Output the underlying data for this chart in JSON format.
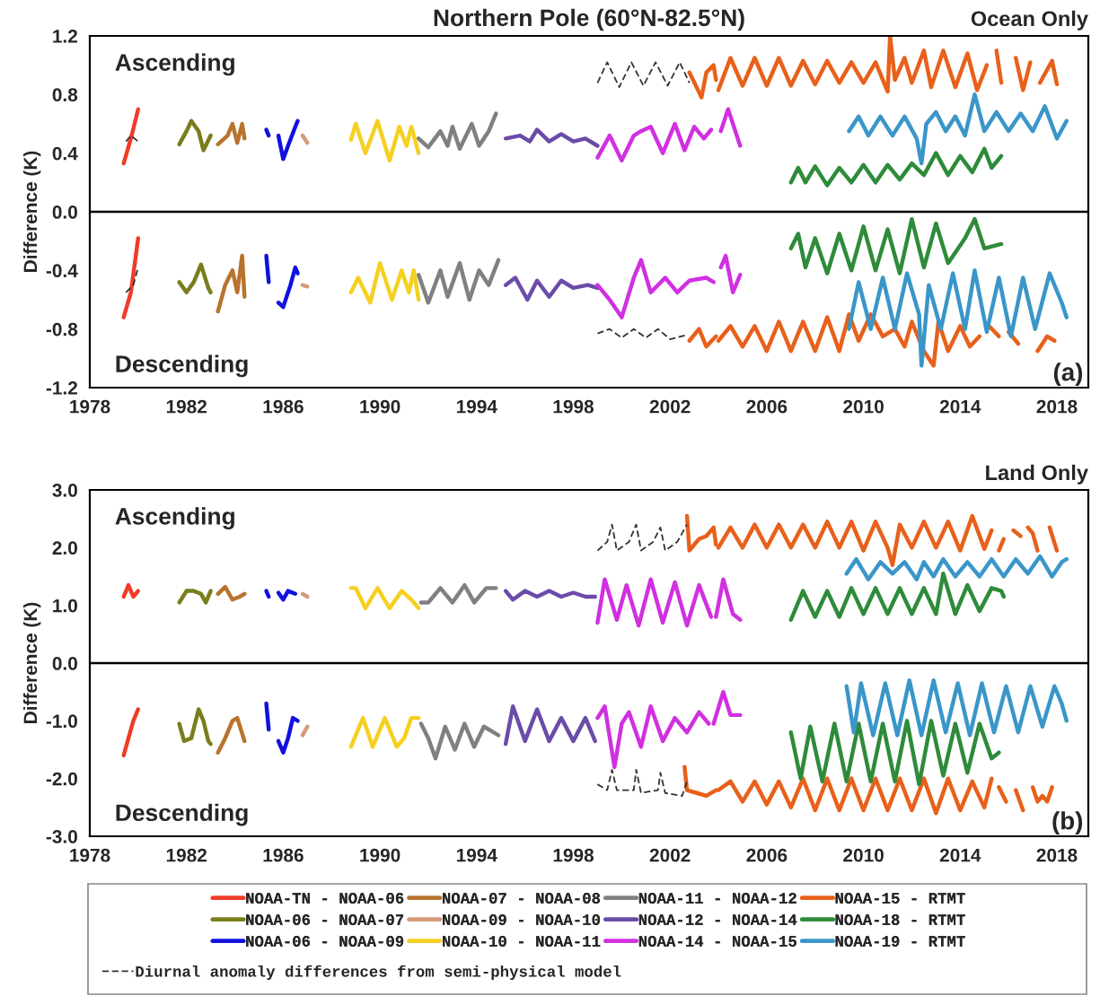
{
  "chart_data": [
    {
      "type": "line",
      "title": "Northern Pole (60°N-82.5°N)",
      "subtitle": "Ocean Only",
      "ylabel": "Difference (K)",
      "annotations": [
        "Ascending",
        "Descending",
        "(a)"
      ],
      "xlim": [
        1978,
        2019.3
      ],
      "xticks": [
        1978,
        1982,
        1986,
        1990,
        1994,
        1998,
        2002,
        2006,
        2010,
        2014,
        2018
      ],
      "ylim": [
        -1.2,
        1.2
      ],
      "yticks": [
        {
          "value": -1.2,
          "label": "-1.2"
        },
        {
          "value": -0.8,
          "label": "-0.8"
        },
        {
          "value": -0.4,
          "label": "-0.4"
        },
        {
          "value": 0,
          "label": "0.0"
        },
        {
          "value": 0.4,
          "label": "0.4"
        },
        {
          "value": 0.8,
          "label": "0.8"
        },
        {
          "value": 1.2,
          "label": "1.2"
        }
      ],
      "ref_lines": [
        {
          "axis": "y",
          "value": 0,
          "color": "#000000"
        }
      ],
      "series": [
        {
          "color": "#f03c28",
          "x": [
            1979.4,
            1979.7,
            1980.0
          ],
          "values": [
            0.33,
            0.5,
            0.7
          ]
        },
        {
          "color": "#f03c28",
          "x": [
            1979.4,
            1979.7,
            1980.0
          ],
          "values": [
            -0.72,
            -0.55,
            -0.18
          ]
        },
        {
          "color": "#7a7d1c",
          "x": [
            1981.7,
            1982.0,
            1982.2,
            1982.5,
            1982.7,
            1983.0
          ],
          "values": [
            0.46,
            0.55,
            0.62,
            0.55,
            0.42,
            0.52
          ]
        },
        {
          "color": "#7a7d1c",
          "x": [
            1981.7,
            1982.0,
            1982.3,
            1982.6,
            1982.9,
            1983.0
          ],
          "values": [
            -0.48,
            -0.55,
            -0.48,
            -0.36,
            -0.52,
            -0.55
          ]
        },
        {
          "color": "#1010e0",
          "x": [
            1985.3,
            1985.4,
            null,
            1985.8,
            1986.0,
            1986.2,
            1986.5,
            1986.6
          ],
          "values": [
            0.56,
            0.52,
            null,
            0.52,
            0.36,
            0.45,
            0.58,
            0.62
          ]
        },
        {
          "color": "#1010e0",
          "x": [
            1985.3,
            1985.4,
            null,
            1985.8,
            1986.0,
            1986.3,
            1986.5,
            1986.6
          ],
          "values": [
            -0.3,
            -0.48,
            null,
            -0.62,
            -0.65,
            -0.5,
            -0.38,
            -0.42
          ]
        },
        {
          "color": "#b8732e",
          "x": [
            1983.3,
            1983.7,
            1983.9,
            1984.1,
            1984.3,
            1984.4
          ],
          "values": [
            0.46,
            0.52,
            0.6,
            0.47,
            0.6,
            0.5
          ]
        },
        {
          "color": "#b8732e",
          "x": [
            1983.3,
            1983.6,
            1983.9,
            1984.1,
            1984.3,
            1984.4
          ],
          "values": [
            -0.68,
            -0.5,
            -0.4,
            -0.55,
            -0.3,
            -0.58
          ]
        },
        {
          "color": "#d49a7a",
          "x": [
            1986.8,
            1987.0
          ],
          "values": [
            0.52,
            0.47
          ]
        },
        {
          "color": "#d49a7a",
          "x": [
            1986.8,
            1987.0
          ],
          "values": [
            -0.5,
            -0.51
          ]
        },
        {
          "color": "#f5d020",
          "x": [
            1988.8,
            1989.0,
            1989.4,
            1989.9,
            1990.4,
            1990.8,
            1991.1,
            1991.3,
            1991.6
          ],
          "values": [
            0.49,
            0.6,
            0.4,
            0.62,
            0.35,
            0.58,
            0.45,
            0.58,
            0.4
          ]
        },
        {
          "color": "#f5d020",
          "x": [
            1988.8,
            1989.1,
            1989.6,
            1990.0,
            1990.5,
            1990.9,
            1991.2,
            1991.4,
            1991.6
          ],
          "values": [
            -0.55,
            -0.45,
            -0.62,
            -0.35,
            -0.6,
            -0.4,
            -0.55,
            -0.4,
            -0.6
          ]
        },
        {
          "color": "#808080",
          "x": [
            1991.6,
            1992.0,
            1992.5,
            1992.8,
            1993.0,
            1993.3,
            1993.8,
            1994.1,
            1994.5,
            1994.8
          ],
          "values": [
            0.5,
            0.44,
            0.55,
            0.45,
            0.58,
            0.43,
            0.6,
            0.45,
            0.55,
            0.67
          ]
        },
        {
          "color": "#808080",
          "x": [
            1991.6,
            1992.0,
            1992.5,
            1992.8,
            1993.3,
            1993.7,
            1994.1,
            1994.5,
            1994.9
          ],
          "values": [
            -0.43,
            -0.62,
            -0.4,
            -0.58,
            -0.35,
            -0.6,
            -0.4,
            -0.5,
            -0.33
          ]
        },
        {
          "color": "#6a4ca8",
          "x": [
            1995.2,
            1995.8,
            1996.2,
            1996.5,
            1997.0,
            1997.5,
            1998.0,
            1998.5,
            1999.0
          ],
          "values": [
            0.5,
            0.52,
            0.48,
            0.56,
            0.48,
            0.53,
            0.48,
            0.5,
            0.45
          ]
        },
        {
          "color": "#6a4ca8",
          "x": [
            1995.2,
            1995.6,
            1996.1,
            1996.5,
            1997.0,
            1997.5,
            1998.0,
            1998.6,
            1999.0
          ],
          "values": [
            -0.5,
            -0.45,
            -0.6,
            -0.47,
            -0.58,
            -0.47,
            -0.52,
            -0.5,
            -0.52
          ]
        },
        {
          "color": "#d030e0",
          "x": [
            1999.0,
            1999.5,
            2000.0,
            2000.5,
            2000.8,
            2001.2,
            2001.7,
            2002.2,
            2002.6,
            2003.0,
            2003.4,
            2003.7,
            null,
            2004.1,
            2004.4,
            2004.7,
            2004.9
          ],
          "values": [
            0.37,
            0.52,
            0.35,
            0.52,
            0.55,
            0.58,
            0.4,
            0.6,
            0.42,
            0.58,
            0.5,
            0.56,
            null,
            0.55,
            0.7,
            0.55,
            0.45
          ]
        },
        {
          "color": "#d030e0",
          "x": [
            1999.0,
            1999.5,
            2000.0,
            2000.5,
            2000.8,
            2001.2,
            2001.8,
            2002.3,
            2002.8,
            2003.5,
            2003.8,
            null,
            2004.1,
            2004.3,
            2004.6,
            2004.9
          ],
          "values": [
            -0.5,
            -0.6,
            -0.72,
            -0.45,
            -0.33,
            -0.55,
            -0.45,
            -0.55,
            -0.47,
            -0.45,
            -0.48,
            null,
            -0.38,
            -0.3,
            -0.55,
            -0.43
          ]
        },
        {
          "color": "#e8601a",
          "x": [
            2002.8,
            2003.1,
            2003.3,
            2003.5,
            2003.8,
            2003.9,
            null,
            2004.0,
            2004.5,
            2005.0,
            2005.5,
            2006.0,
            2006.5,
            2007.0,
            2007.5,
            2008.0,
            2008.5,
            2009.0,
            2009.5,
            2010.0,
            2010.5,
            2011.0,
            2011.1,
            2011.3,
            2011.7,
            2012.0,
            2012.5,
            2012.8,
            2013.3,
            2013.8,
            2014.3,
            2014.7,
            2015.1,
            null,
            2015.5,
            2015.7,
            null,
            2016.3,
            2016.6,
            2016.9,
            null,
            2017.3,
            2017.8,
            2018.0
          ],
          "values": [
            0.95,
            0.85,
            0.78,
            0.95,
            1.0,
            0.9,
            null,
            0.83,
            1.05,
            0.86,
            1.05,
            0.86,
            1.05,
            0.86,
            1.03,
            0.87,
            1.03,
            0.88,
            1.02,
            0.88,
            1.02,
            0.82,
            1.2,
            0.9,
            1.05,
            0.88,
            1.1,
            0.85,
            1.1,
            0.85,
            1.08,
            0.83,
            1.0,
            null,
            1.1,
            0.88,
            null,
            1.05,
            0.83,
            1.02,
            null,
            0.88,
            1.03,
            0.87
          ]
        },
        {
          "color": "#e8601a",
          "x": [
            2002.8,
            2003.2,
            2003.5,
            2003.9,
            null,
            2004.0,
            2004.5,
            2005.0,
            2005.5,
            2006.0,
            2006.5,
            2007.0,
            2007.5,
            2008.0,
            2008.5,
            2009.0,
            2009.4,
            2009.8,
            2010.3,
            2010.8,
            2011.3,
            2011.7,
            2012.0,
            2012.5,
            2012.9,
            2013.1,
            2013.5,
            2014.0,
            2014.4,
            2014.8,
            null,
            2015.2,
            2015.6,
            null,
            2016.0,
            2016.4,
            null,
            2017.2,
            2017.6,
            2017.9
          ],
          "values": [
            -0.88,
            -0.8,
            -0.92,
            -0.85,
            null,
            -0.88,
            -0.78,
            -0.92,
            -0.78,
            -0.95,
            -0.75,
            -0.95,
            -0.75,
            -0.95,
            -0.72,
            -0.95,
            -0.7,
            -0.88,
            -0.7,
            -0.85,
            -0.8,
            -0.92,
            -0.75,
            -0.95,
            -1.05,
            -0.75,
            -0.95,
            -0.78,
            -0.92,
            -0.85,
            null,
            -0.78,
            -0.85,
            null,
            -0.82,
            -0.9,
            null,
            -0.95,
            -0.85,
            -0.88
          ]
        },
        {
          "color": "#2e8b3a",
          "x": [
            2007.0,
            2007.3,
            2007.6,
            2008.0,
            2008.5,
            2009.0,
            2009.5,
            2010.0,
            2010.5,
            2011.0,
            2011.5,
            2012.0,
            2012.5,
            2013.0,
            2013.5,
            2014.0,
            2014.5,
            2015.0,
            2015.3,
            2015.7
          ],
          "values": [
            0.2,
            0.3,
            0.2,
            0.31,
            0.18,
            0.3,
            0.2,
            0.32,
            0.2,
            0.32,
            0.22,
            0.33,
            0.25,
            0.4,
            0.25,
            0.38,
            0.27,
            0.43,
            0.3,
            0.38
          ]
        },
        {
          "color": "#2e8b3a",
          "x": [
            2007.0,
            2007.3,
            2007.6,
            2008.0,
            2008.5,
            2009.0,
            2009.5,
            2010.0,
            2010.5,
            2011.0,
            2011.5,
            2012.0,
            2012.5,
            2013.0,
            2013.5,
            2014.2,
            2014.6,
            2015.0,
            2015.7
          ],
          "values": [
            -0.25,
            -0.15,
            -0.38,
            -0.18,
            -0.42,
            -0.15,
            -0.4,
            -0.1,
            -0.4,
            -0.12,
            -0.42,
            -0.05,
            -0.38,
            -0.08,
            -0.35,
            -0.18,
            -0.05,
            -0.25,
            -0.22
          ]
        },
        {
          "color": "#3a96c8",
          "x": [
            2009.4,
            2009.8,
            2010.2,
            2010.7,
            2011.2,
            2011.7,
            2012.2,
            2012.4,
            2012.6,
            2013.0,
            2013.4,
            2013.8,
            2014.2,
            2014.6,
            2015.0,
            2015.5,
            2016.0,
            2016.5,
            2017.0,
            2017.5,
            2018.0,
            2018.4
          ],
          "values": [
            0.55,
            0.65,
            0.52,
            0.65,
            0.52,
            0.65,
            0.5,
            0.33,
            0.6,
            0.68,
            0.55,
            0.65,
            0.52,
            0.8,
            0.55,
            0.68,
            0.55,
            0.67,
            0.55,
            0.72,
            0.5,
            0.62
          ]
        },
        {
          "color": "#3a96c8",
          "x": [
            2009.4,
            2009.8,
            2010.3,
            2010.8,
            2011.3,
            2011.8,
            2012.3,
            2012.4,
            2012.7,
            2013.2,
            2013.7,
            2014.2,
            2014.6,
            2015.1,
            2015.6,
            2016.1,
            2016.6,
            2017.1,
            2017.7,
            2018.2,
            2018.4
          ],
          "values": [
            -0.8,
            -0.48,
            -0.8,
            -0.45,
            -0.8,
            -0.42,
            -0.7,
            -1.05,
            -0.5,
            -0.8,
            -0.42,
            -0.8,
            -0.4,
            -0.82,
            -0.45,
            -0.85,
            -0.45,
            -0.8,
            -0.42,
            -0.62,
            -0.72
          ]
        },
        {
          "color": "#333333",
          "line_style": "dashed",
          "x": [
            1979.5,
            1979.7,
            1980.0,
            null,
            1999.0,
            1999.4,
            1999.9,
            2000.4,
            2000.9,
            2001.4,
            2001.9,
            2002.4,
            2002.8
          ],
          "values": [
            0.48,
            0.52,
            0.48,
            null,
            0.88,
            1.02,
            0.85,
            1.02,
            0.86,
            1.02,
            0.86,
            1.02,
            0.88
          ]
        },
        {
          "color": "#333333",
          "line_style": "dashed",
          "x": [
            1979.5,
            1979.8,
            1980.0,
            null,
            1999.0,
            1999.5,
            2000.0,
            2000.5,
            2001.0,
            2001.5,
            2002.0,
            2002.7
          ],
          "values": [
            -0.55,
            -0.5,
            -0.38,
            null,
            -0.83,
            -0.8,
            -0.86,
            -0.8,
            -0.86,
            -0.8,
            -0.87,
            -0.84
          ]
        }
      ]
    },
    {
      "type": "line",
      "subtitle": "Land Only",
      "ylabel": "Difference (K)",
      "legend": "bottom",
      "annotations": [
        "Ascending",
        "Descending",
        "(b)"
      ],
      "xlim": [
        1978,
        2019.3
      ],
      "xticks": [
        1978,
        1982,
        1986,
        1990,
        1994,
        1998,
        2002,
        2006,
        2010,
        2014,
        2018
      ],
      "ylim": [
        -3.0,
        3.0
      ],
      "yticks": [
        {
          "value": -3,
          "label": "-3.0"
        },
        {
          "value": -2,
          "label": "-2.0"
        },
        {
          "value": -1,
          "label": "-1.0"
        },
        {
          "value": 0,
          "label": "0.0"
        },
        {
          "value": 1,
          "label": "1.0"
        },
        {
          "value": 2,
          "label": "2.0"
        },
        {
          "value": 3,
          "label": "3.0"
        }
      ],
      "ref_lines": [
        {
          "axis": "y",
          "value": 0,
          "color": "#000000"
        }
      ],
      "series": [
        {
          "name": "NOAA-TN - NOAA-06",
          "color": "#f03c28",
          "x": [
            1979.4,
            1979.6,
            1979.8,
            1980.0
          ],
          "values": [
            1.15,
            1.35,
            1.15,
            1.25
          ]
        },
        {
          "color": "#f03c28",
          "x": [
            1979.4,
            1979.6,
            1979.8,
            1980.0
          ],
          "values": [
            -1.6,
            -1.3,
            -1.0,
            -0.8
          ]
        },
        {
          "name": "NOAA-06 - NOAA-07",
          "color": "#7a7d1c",
          "x": [
            1981.7,
            1982.0,
            1982.3,
            1982.6,
            1982.8,
            1983.0
          ],
          "values": [
            1.05,
            1.25,
            1.25,
            1.2,
            1.05,
            1.25
          ]
        },
        {
          "color": "#7a7d1c",
          "x": [
            1981.7,
            1981.9,
            1982.2,
            1982.5,
            1982.7,
            1982.9,
            1983.0
          ],
          "values": [
            -1.05,
            -1.35,
            -1.3,
            -0.8,
            -1.0,
            -1.35,
            -1.4
          ]
        },
        {
          "name": "NOAA-06 - NOAA-09",
          "color": "#1010e0",
          "x": [
            1985.3,
            1985.4,
            null,
            1985.8,
            1986.0,
            1986.2,
            1986.5
          ],
          "values": [
            1.25,
            1.15,
            null,
            1.22,
            1.1,
            1.25,
            1.2
          ]
        },
        {
          "color": "#1010e0",
          "x": [
            1985.3,
            1985.4,
            null,
            1985.8,
            1986.0,
            1986.2,
            1986.4,
            1986.6
          ],
          "values": [
            -0.7,
            -1.15,
            null,
            -1.35,
            -1.55,
            -1.3,
            -0.95,
            -1.0
          ]
        },
        {
          "name": "NOAA-07 - NOAA-08",
          "color": "#b8732e",
          "x": [
            1983.3,
            1983.6,
            1983.9,
            1984.2,
            1984.4
          ],
          "values": [
            1.2,
            1.32,
            1.1,
            1.15,
            1.2
          ]
        },
        {
          "color": "#b8732e",
          "x": [
            1983.3,
            1983.6,
            1983.9,
            1984.1,
            1984.4
          ],
          "values": [
            -1.55,
            -1.3,
            -1.0,
            -0.95,
            -1.35
          ]
        },
        {
          "name": "NOAA-09 - NOAA-10",
          "color": "#d49a7a",
          "x": [
            1986.8,
            1987.0
          ],
          "values": [
            1.2,
            1.15
          ]
        },
        {
          "color": "#d49a7a",
          "x": [
            1986.8,
            1987.0
          ],
          "values": [
            -1.25,
            -1.1
          ]
        },
        {
          "name": "NOAA-10 - NOAA-11",
          "color": "#f5d020",
          "x": [
            1988.8,
            1989.0,
            1989.4,
            1989.9,
            1990.4,
            1990.9,
            1991.3,
            1991.6
          ],
          "values": [
            1.3,
            1.3,
            0.95,
            1.3,
            0.95,
            1.25,
            1.1,
            0.95
          ]
        },
        {
          "color": "#f5d020",
          "x": [
            1988.8,
            1989.3,
            1989.7,
            1990.2,
            1990.7,
            1991.0,
            1991.3,
            1991.6
          ],
          "values": [
            -1.45,
            -0.95,
            -1.45,
            -0.95,
            -1.45,
            -1.3,
            -0.95,
            -0.95
          ]
        },
        {
          "name": "NOAA-11 - NOAA-12",
          "color": "#808080",
          "x": [
            1991.7,
            1992.0,
            1992.5,
            1993.0,
            1993.5,
            1993.9,
            1994.4,
            1994.8
          ],
          "values": [
            1.05,
            1.05,
            1.3,
            1.05,
            1.35,
            1.05,
            1.3,
            1.3
          ]
        },
        {
          "color": "#808080",
          "x": [
            1991.7,
            1992.0,
            1992.3,
            1992.7,
            1993.1,
            1993.5,
            1993.9,
            1994.3,
            1994.9
          ],
          "values": [
            -1.05,
            -1.3,
            -1.65,
            -1.1,
            -1.5,
            -1.05,
            -1.45,
            -1.1,
            -1.25
          ]
        },
        {
          "name": "NOAA-12 - NOAA-14",
          "color": "#6a4ca8",
          "x": [
            1995.2,
            1995.5,
            1996.0,
            1996.5,
            1997.0,
            1997.5,
            1998.0,
            1998.5,
            1998.9
          ],
          "values": [
            1.25,
            1.1,
            1.25,
            1.15,
            1.25,
            1.15,
            1.22,
            1.15,
            1.15
          ]
        },
        {
          "color": "#6a4ca8",
          "x": [
            1995.2,
            1995.5,
            1996.0,
            1996.5,
            1997.0,
            1997.5,
            1998.0,
            1998.5,
            1998.9
          ],
          "values": [
            -1.4,
            -0.75,
            -1.35,
            -0.8,
            -1.35,
            -0.95,
            -1.35,
            -0.95,
            -1.35
          ]
        },
        {
          "name": "NOAA-14 - NOAA-15",
          "color": "#d030e0",
          "x": [
            1999.0,
            1999.3,
            1999.8,
            2000.2,
            2000.7,
            2001.2,
            2001.7,
            2002.2,
            2002.7,
            2003.2,
            2003.7,
            null,
            2003.9,
            2004.2,
            2004.6,
            2004.9
          ],
          "values": [
            0.7,
            1.45,
            0.75,
            1.35,
            0.65,
            1.45,
            0.7,
            1.4,
            0.65,
            1.35,
            0.8,
            null,
            0.8,
            1.45,
            0.85,
            0.75
          ]
        },
        {
          "color": "#d030e0",
          "x": [
            1999.0,
            1999.3,
            1999.7,
            2000.0,
            2000.3,
            2000.8,
            2001.2,
            2001.7,
            2002.2,
            2002.7,
            2003.2,
            2003.6,
            null,
            2003.8,
            2004.2,
            2004.5,
            2004.9
          ],
          "values": [
            -0.95,
            -0.75,
            -1.8,
            -1.05,
            -0.85,
            -1.45,
            -0.75,
            -1.35,
            -0.95,
            -1.2,
            -0.85,
            -1.05,
            null,
            -1.05,
            -0.5,
            -0.9,
            -0.9
          ]
        },
        {
          "name": "NOAA-15 - RTMT",
          "color": "#e8601a",
          "x": [
            2002.7,
            2002.8,
            2003.2,
            2003.5,
            2003.8,
            2003.9,
            null,
            2004.0,
            2004.5,
            2005.0,
            2005.5,
            2006.0,
            2006.5,
            2007.0,
            2007.5,
            2008.0,
            2008.5,
            2009.0,
            2009.5,
            2010.0,
            2010.5,
            2011.0,
            2011.2,
            2011.5,
            2012.0,
            2012.5,
            2013.0,
            2013.5,
            2014.0,
            2014.5,
            2015.0,
            2015.3,
            null,
            2015.6,
            2015.8,
            null,
            2016.2,
            2016.5,
            null,
            2016.8,
            2017.0,
            2017.2,
            null,
            2017.7,
            2018.0
          ],
          "values": [
            2.55,
            1.95,
            2.15,
            2.2,
            2.35,
            2.05,
            null,
            2.0,
            2.35,
            2.0,
            2.4,
            2.0,
            2.4,
            2.0,
            2.4,
            2.0,
            2.45,
            2.0,
            2.45,
            1.95,
            2.45,
            2.0,
            1.7,
            2.4,
            2.0,
            2.45,
            2.0,
            2.45,
            1.95,
            2.55,
            1.98,
            2.3,
            null,
            1.95,
            2.15,
            null,
            2.3,
            2.2,
            null,
            2.35,
            2.25,
            1.95,
            null,
            2.35,
            1.95
          ]
        },
        {
          "color": "#e8601a",
          "x": [
            2002.6,
            2002.7,
            2003.1,
            2003.5,
            2003.9,
            null,
            2004.0,
            2004.5,
            2005.0,
            2005.5,
            2006.0,
            2006.5,
            2007.0,
            2007.5,
            2008.0,
            2008.5,
            2009.0,
            2009.5,
            2010.0,
            2010.5,
            2011.0,
            2011.5,
            2012.0,
            2012.5,
            2013.0,
            2013.5,
            2014.0,
            2014.5,
            2015.0,
            2015.3,
            null,
            2015.6,
            2015.9,
            null,
            2016.3,
            2016.6,
            null,
            2017.0,
            2017.2,
            2017.4,
            2017.6,
            2017.8
          ],
          "values": [
            -1.8,
            -2.2,
            -2.25,
            -2.3,
            -2.2,
            null,
            -2.2,
            -2.05,
            -2.4,
            -2.05,
            -2.45,
            -2.05,
            -2.5,
            -2.0,
            -2.55,
            -2.0,
            -2.55,
            -2.0,
            -2.55,
            -2.0,
            -2.55,
            -2.0,
            -2.55,
            -2.0,
            -2.6,
            -2.0,
            -2.55,
            -2.05,
            -2.5,
            -2.0,
            null,
            -2.15,
            -2.4,
            null,
            -2.2,
            -2.55,
            null,
            -2.15,
            -2.4,
            -2.3,
            -2.4,
            -2.15
          ]
        },
        {
          "name": "NOAA-18 - RTMT",
          "color": "#2e8b3a",
          "x": [
            2007.0,
            2007.5,
            2008.0,
            2008.5,
            2009.0,
            2009.5,
            2010.0,
            2010.5,
            2011.0,
            2011.5,
            2012.0,
            2012.5,
            2013.0,
            2013.3,
            2013.8,
            2014.3,
            2014.8,
            2015.3,
            2015.7,
            2015.8
          ],
          "values": [
            0.75,
            1.25,
            0.8,
            1.25,
            0.8,
            1.3,
            0.85,
            1.3,
            0.85,
            1.3,
            0.85,
            1.3,
            0.85,
            1.55,
            0.85,
            1.35,
            0.9,
            1.3,
            1.25,
            1.15
          ]
        },
        {
          "color": "#2e8b3a",
          "x": [
            2007.0,
            2007.4,
            2007.8,
            2008.3,
            2008.8,
            2009.3,
            2009.8,
            2010.3,
            2010.8,
            2011.3,
            2011.8,
            2012.3,
            2012.8,
            2013.3,
            2013.8,
            2014.3,
            2014.8,
            2015.3,
            2015.6
          ],
          "values": [
            -1.2,
            -2.0,
            -1.1,
            -2.05,
            -1.05,
            -2.05,
            -1.05,
            -2.05,
            -1.05,
            -2.05,
            -1.0,
            -2.1,
            -1.0,
            -1.95,
            -1.05,
            -1.9,
            -1.05,
            -1.65,
            -1.55
          ]
        },
        {
          "name": "NOAA-19 - RTMT",
          "color": "#3a96c8",
          "x": [
            2009.3,
            2009.7,
            2010.2,
            2010.7,
            2011.2,
            2011.7,
            2012.2,
            2012.5,
            2012.9,
            2013.3,
            2013.8,
            2014.3,
            2014.8,
            2015.3,
            2015.8,
            2016.3,
            2016.8,
            2017.3,
            2017.8,
            2018.2,
            2018.4
          ],
          "values": [
            1.55,
            1.8,
            1.45,
            1.75,
            1.55,
            1.75,
            1.45,
            1.75,
            1.5,
            1.8,
            1.5,
            1.75,
            1.5,
            1.8,
            1.5,
            1.8,
            1.55,
            1.85,
            1.5,
            1.75,
            1.8
          ]
        },
        {
          "color": "#3a96c8",
          "x": [
            2009.3,
            2009.6,
            2009.9,
            2010.4,
            2010.9,
            2011.4,
            2011.9,
            2012.4,
            2012.9,
            2013.4,
            2013.9,
            2014.4,
            2014.9,
            2015.4,
            2015.9,
            2016.4,
            2016.9,
            2017.4,
            2017.9,
            2018.2,
            2018.4
          ],
          "values": [
            -0.4,
            -1.2,
            -0.35,
            -1.25,
            -0.35,
            -1.25,
            -0.3,
            -1.25,
            -0.3,
            -1.2,
            -0.35,
            -1.25,
            -0.35,
            -1.2,
            -0.4,
            -1.2,
            -0.4,
            -1.1,
            -0.4,
            -0.7,
            -1.0
          ]
        },
        {
          "name": "Diurnal anomaly differences from semi-physical model",
          "color": "#333333",
          "line_style": "dashed",
          "x": [
            1999.0,
            1999.4,
            1999.6,
            1999.8,
            2000.3,
            2000.6,
            2000.8,
            2001.3,
            2001.6,
            2001.8,
            2002.3,
            2002.7
          ],
          "values": [
            1.95,
            2.1,
            2.4,
            1.95,
            2.1,
            2.4,
            1.95,
            2.1,
            2.35,
            1.95,
            2.1,
            2.4
          ]
        },
        {
          "color": "#333333",
          "line_style": "dashed",
          "x": [
            1999.0,
            1999.4,
            1999.6,
            1999.8,
            2000.5,
            2000.6,
            2000.8,
            2001.5,
            2001.6,
            2001.8,
            2002.5,
            2002.7
          ],
          "values": [
            -2.1,
            -2.2,
            -1.85,
            -2.2,
            -2.2,
            -1.85,
            -2.25,
            -2.2,
            -1.9,
            -2.25,
            -2.3,
            -2.05
          ]
        }
      ]
    }
  ]
}
